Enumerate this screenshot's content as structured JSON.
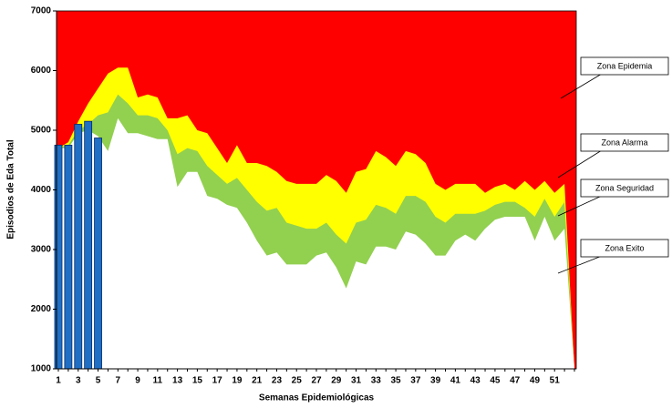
{
  "chart_data": {
    "type": "endemic-channel",
    "x_label": "Semanas Epidemiológicas",
    "y_label": "Episodios de Eda Total",
    "categories": [
      1,
      null,
      3,
      null,
      5,
      null,
      7,
      null,
      9,
      null,
      11,
      null,
      13,
      null,
      15,
      null,
      17,
      null,
      19,
      null,
      21,
      null,
      23,
      null,
      25,
      null,
      27,
      null,
      29,
      null,
      31,
      null,
      33,
      null,
      35,
      null,
      37,
      null,
      39,
      null,
      41,
      null,
      43,
      null,
      45,
      null,
      47,
      null,
      49,
      null,
      51,
      null,
      null
    ],
    "ylim": [
      1000,
      7000
    ],
    "yticks": [
      1000,
      2000,
      3000,
      4000,
      5000,
      6000,
      7000
    ],
    "epidemic_zone": {
      "name": "Zona Epidemia",
      "color": "#ff0000"
    },
    "series": [
      {
        "name": "Zona Alarma",
        "color": "#ffff00",
        "values": [
          4700,
          4800,
          5150,
          5450,
          5700,
          5950,
          6050,
          6050,
          5550,
          5600,
          5550,
          5200,
          5200,
          5250,
          5000,
          4950,
          4700,
          4450,
          4750,
          4450,
          4450,
          4400,
          4300,
          4150,
          4100,
          4100,
          4100,
          4250,
          4150,
          3950,
          4300,
          4350,
          4650,
          4550,
          4400,
          4650,
          4600,
          4450,
          4100,
          4000,
          4100,
          4100,
          4100,
          3950,
          4050,
          4100,
          4000,
          4150,
          4000,
          4150,
          3950,
          4100,
          1000
        ]
      },
      {
        "name": "Zona Seguridad",
        "color": "#92d050",
        "values": [
          4700,
          4750,
          5000,
          5100,
          5250,
          5300,
          5600,
          5450,
          5250,
          5250,
          5200,
          5000,
          4600,
          4700,
          4650,
          4400,
          4250,
          4100,
          4200,
          4000,
          3800,
          3650,
          3700,
          3450,
          3400,
          3350,
          3350,
          3450,
          3250,
          3100,
          3450,
          3500,
          3750,
          3700,
          3600,
          3900,
          3900,
          3800,
          3550,
          3450,
          3600,
          3600,
          3600,
          3650,
          3750,
          3800,
          3800,
          3700,
          3550,
          3850,
          3550,
          3800,
          1000
        ]
      },
      {
        "name": "Zona Exito",
        "color": "#ffffff",
        "values": [
          4700,
          4700,
          4950,
          5000,
          4900,
          4650,
          5200,
          4950,
          4950,
          4900,
          4850,
          4850,
          4050,
          4300,
          4300,
          3900,
          3850,
          3750,
          3700,
          3450,
          3150,
          2900,
          2950,
          2750,
          2750,
          2750,
          2900,
          2950,
          2700,
          2350,
          2800,
          2750,
          3050,
          3050,
          3000,
          3300,
          3250,
          3100,
          2900,
          2900,
          3150,
          3250,
          3150,
          3350,
          3500,
          3550,
          3550,
          3550,
          3150,
          3550,
          3150,
          3350,
          1000
        ]
      }
    ],
    "cases": {
      "color": "#1f6fc5",
      "values": [
        4750,
        4750,
        5100,
        5150,
        4870
      ]
    }
  }
}
